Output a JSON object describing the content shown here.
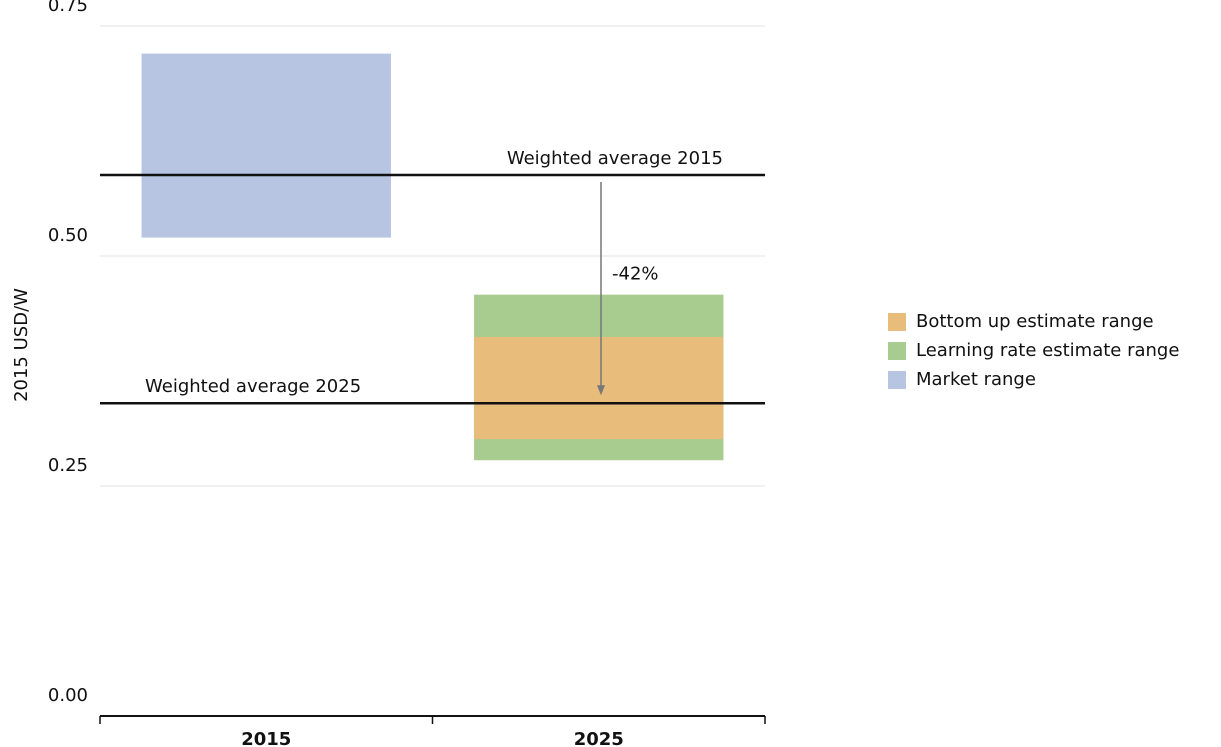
{
  "chart_data": {
    "type": "range_bar",
    "y_label": "2015 USD/W",
    "categories": [
      "2015",
      "2025"
    ],
    "ylim": [
      0,
      0.75
    ],
    "yticks": [
      {
        "value": 0,
        "label": "0.00"
      },
      0.25,
      {
        "value": 0.5,
        "label": "0.50"
      },
      0.75
    ],
    "grid": true,
    "legend": "right",
    "series": [
      {
        "name": "Bottom up estimate range",
        "color": "#e8bc7a",
        "low": [
          null,
          0.301
        ],
        "high": [
          null,
          0.412
        ]
      },
      {
        "name": "Learning rate estimate range",
        "color": "#a8cc8f",
        "low": [
          null,
          0.278
        ],
        "high": [
          null,
          0.458
        ]
      },
      {
        "name": "Market range",
        "color": "#b7c4e2",
        "low": [
          0.52,
          null
        ],
        "high": [
          0.72,
          null
        ]
      }
    ],
    "reference_lines": [
      {
        "label": "Weighted average 2015",
        "value": 0.588
      },
      {
        "label": "Weighted average 2025",
        "value": 0.34
      }
    ],
    "annotations": [
      {
        "text": "-42%"
      }
    ]
  }
}
